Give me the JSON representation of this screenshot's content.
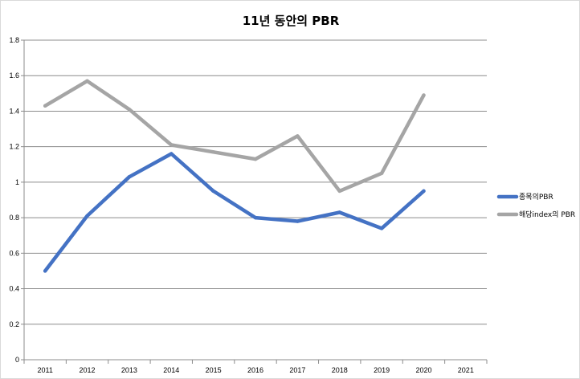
{
  "chart_data": {
    "type": "line",
    "title": "11년 동안의 PBR",
    "categories": [
      "2011",
      "2012",
      "2013",
      "2014",
      "2015",
      "2016",
      "2017",
      "2018",
      "2019",
      "2020",
      "2021"
    ],
    "series": [
      {
        "name": "종목의PBR",
        "color": "#4472c4",
        "values": [
          0.5,
          0.81,
          1.03,
          1.16,
          0.95,
          0.8,
          0.78,
          0.83,
          0.74,
          0.95,
          null
        ]
      },
      {
        "name": "해당index의 PBR",
        "color": "#a5a5a5",
        "values": [
          1.43,
          1.57,
          1.41,
          1.21,
          1.17,
          1.13,
          1.26,
          0.95,
          1.05,
          1.49,
          null
        ]
      }
    ],
    "yticks": [
      "0",
      "0.2",
      "0.4",
      "0.6",
      "0.8",
      "1",
      "1.2",
      "1.4",
      "1.6",
      "1.8"
    ],
    "ylim": [
      0,
      1.8
    ],
    "grid": true,
    "legend": "right"
  }
}
